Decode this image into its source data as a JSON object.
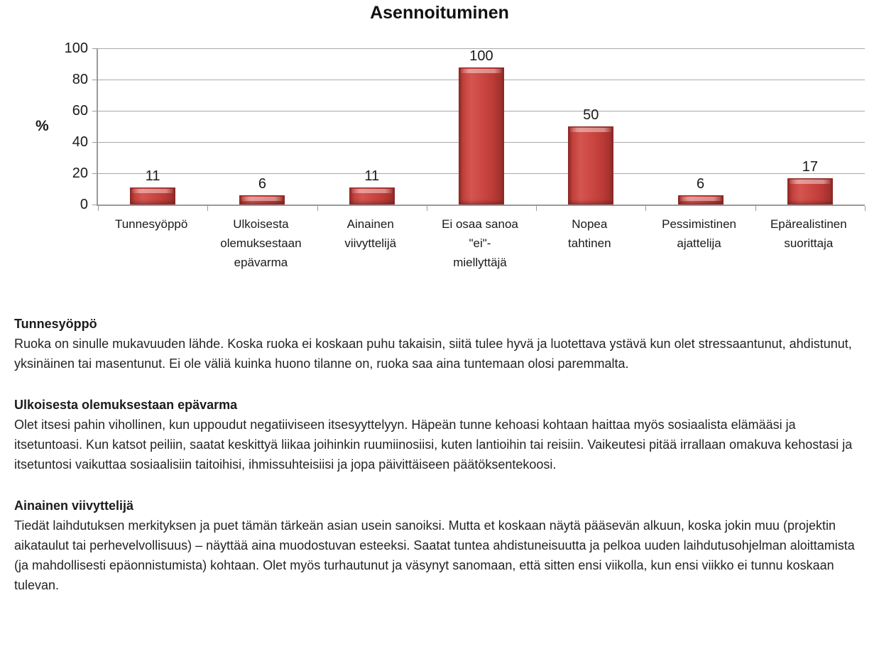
{
  "chart_data": {
    "type": "bar",
    "title": "Asennoituminen",
    "ylabel": "%",
    "xlabel": "",
    "ylim": [
      0,
      100
    ],
    "yticks": [
      100,
      80,
      60,
      40,
      20,
      0
    ],
    "grid": true,
    "legend": false,
    "bar_color": "#c0392f",
    "categories": [
      "Tunnesyöppö",
      "Ulkoisesta olemuksestaan epävarma",
      "Ainainen viivyttelijä",
      "Ei osaa sanoa \"ei\"-miellyttäjä",
      "Nopea tahtinen",
      "Pessimistinen ajattelija",
      "Epärealistinen suorittaja"
    ],
    "category_lines": [
      [
        "Tunnesyöppö"
      ],
      [
        "Ulkoisesta",
        "olemuksestaan",
        "epävarma"
      ],
      [
        "Ainainen",
        "viivyttelijä"
      ],
      [
        "Ei osaa sanoa",
        "\"ei\"-",
        "miellyttäjä"
      ],
      [
        "Nopea",
        "tahtinen"
      ],
      [
        "Pessimistinen",
        "ajattelija"
      ],
      [
        "Epärealistinen",
        "suorittaja"
      ]
    ],
    "values": [
      11,
      6,
      11,
      100,
      50,
      6,
      17
    ]
  },
  "sections": [
    {
      "heading": "Tunnesyöppö",
      "body": "Ruoka on sinulle mukavuuden lähde.  Koska ruoka ei koskaan puhu takaisin, siitä tulee hyvä ja luotettava ystävä kun olet stressaantunut, ahdistunut, yksinäinen tai masentunut. Ei ole väliä kuinka huono tilanne on, ruoka saa aina tuntemaan olosi paremmalta."
    },
    {
      "heading": "Ulkoisesta olemuksestaan epävarma",
      "body": "Olet itsesi pahin vihollinen, kun uppoudut negatiiviseen itsesyyttelyyn. Häpeän tunne kehoasi kohtaan haittaa myös sosiaalista elämääsi ja itsetuntoasi. Kun katsot peiliin, saatat keskittyä liikaa joihinkin ruumiinosiisi, kuten lantioihin tai reisiin. Vaikeutesi pitää irrallaan omakuva kehostasi ja itsetuntosi vaikuttaa sosiaalisiin taitoihisi, ihmissuhteisiisi ja jopa päivittäiseen päätöksentekoosi."
    },
    {
      "heading": "Ainainen viivyttelijä",
      "body": "Tiedät laihdutuksen merkityksen ja puet tämän tärkeän asian usein sanoiksi. Mutta et koskaan näytä pääsevän alkuun, koska jokin muu (projektin aikataulut tai perhevelvollisuus) – näyttää aina muodostuvan esteeksi. Saatat tuntea ahdistuneisuutta ja pelkoa uuden laihdutusohjelman aloittamista (ja mahdollisesti epäonnistumista) kohtaan. Olet myös turhautunut ja väsynyt sanomaan, että sitten ensi viikolla, kun ensi viikko ei tunnu koskaan tulevan."
    }
  ]
}
